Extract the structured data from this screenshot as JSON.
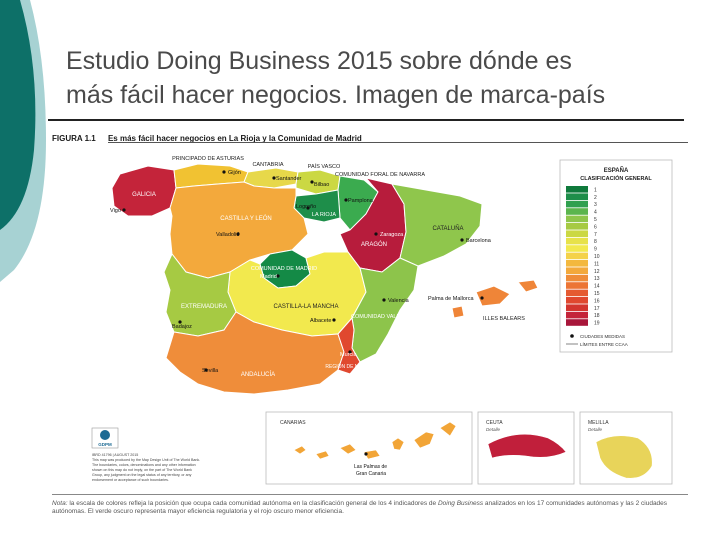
{
  "slide": {
    "title_line1": "Estudio Doing Business 2015 sobre dónde es",
    "title_line2": "más fácil hacer negocios. Imagen de marca-país"
  },
  "figure": {
    "number": "FIGURA 1.1",
    "title": "Es más fácil hacer negocios en La Rioja y la Comunidad de Madrid"
  },
  "regions": [
    {
      "name": "GALICIA",
      "color": "#c4243a"
    },
    {
      "name": "PRINCIPADO DE ASTURIAS",
      "color": "#f1c232"
    },
    {
      "name": "CANTABRIA",
      "color": "#e7d84a"
    },
    {
      "name": "PAÍS VASCO",
      "color": "#cbd843"
    },
    {
      "name": "COMUNIDAD FORAL DE NAVARRA",
      "color": "#3bab4f"
    },
    {
      "name": "LA RIOJA",
      "color": "#1e8e4a"
    },
    {
      "name": "CASTILLA Y LEÓN",
      "color": "#f3a93c"
    },
    {
      "name": "ARAGÓN",
      "color": "#b71c3c"
    },
    {
      "name": "CATALUÑA",
      "color": "#8fc64c"
    },
    {
      "name": "COMUNIDAD DE MADRID",
      "color": "#148a46"
    },
    {
      "name": "CASTILLA-LA MANCHA",
      "color": "#f2e94e"
    },
    {
      "name": "EXTREMADURA",
      "color": "#a6ca43"
    },
    {
      "name": "COMUNIDAD VALENCIANA",
      "color": "#8dc44b"
    },
    {
      "name": "ANDALUCÍA",
      "color": "#ef8d3a"
    },
    {
      "name": "REGIÓN DE MURCIA",
      "color": "#e0482f"
    },
    {
      "name": "ILLES BALEARS",
      "color": "#ef8538"
    },
    {
      "name": "CANARIAS",
      "color": "#f2a537"
    },
    {
      "name": "CEUTA",
      "color": "#c11f3b"
    },
    {
      "name": "MELILLA",
      "color": "#e8d45a"
    }
  ],
  "cities": {
    "gijon": "Gijón",
    "santander": "Santander",
    "bilbao": "Bilbao",
    "pamplona": "Pamplona",
    "logrono": "Logroño",
    "vigo": "Vigo",
    "valladolid": "Valladolid",
    "zaragoza": "Zaragoza",
    "barcelona": "Barcelona",
    "madrid": "Madrid",
    "valencia": "Valencia",
    "palma": "Palma de Mallorca",
    "badajoz": "Badajoz",
    "albacete": "Albacete",
    "murcia": "Murcia",
    "sevilla": "Sevilla",
    "laspalmas_1": "Las Palmas de",
    "laspalmas_2": "Gran Canaria"
  },
  "insets": {
    "canarias": "CANARIAS",
    "ceuta": "CEUTA",
    "ceuta_detail": "Detalle",
    "melilla": "MELILLA",
    "melilla_detail": "Detalle"
  },
  "legend": {
    "title_1": "ESPAÑA",
    "title_2": "CLASIFICACIÓN GENERAL",
    "ranks": [
      {
        "label": "1",
        "color": "#0f7a3c"
      },
      {
        "label": "2",
        "color": "#1e8e4a"
      },
      {
        "label": "3",
        "color": "#2fa04f"
      },
      {
        "label": "4",
        "color": "#5bb54e"
      },
      {
        "label": "5",
        "color": "#8fc64c"
      },
      {
        "label": "6",
        "color": "#a6ca43"
      },
      {
        "label": "7",
        "color": "#cbd843"
      },
      {
        "label": "8",
        "color": "#e7e24a"
      },
      {
        "label": "9",
        "color": "#f2e94e"
      },
      {
        "label": "10",
        "color": "#f4d24a"
      },
      {
        "label": "11",
        "color": "#f3b83e"
      },
      {
        "label": "12",
        "color": "#f3a93c"
      },
      {
        "label": "13",
        "color": "#ef8d3a"
      },
      {
        "label": "14",
        "color": "#ec7535"
      },
      {
        "label": "15",
        "color": "#e55a31"
      },
      {
        "label": "16",
        "color": "#e0482f"
      },
      {
        "label": "17",
        "color": "#d3352f"
      },
      {
        "label": "18",
        "color": "#c4243a"
      },
      {
        "label": "19",
        "color": "#a8163a"
      }
    ],
    "cities_label": "CIUDADES MEDIDAS",
    "border_label": "LÍMITES ENTRE CCAA"
  },
  "publisher": {
    "logo_text": "GDPM",
    "line1": "IBRD 41796 | AUGUST 2015",
    "line2": "This map was produced by the Map Design Unit of The World Bank.",
    "line3": "The boundaries, colors, denominations and any other information",
    "line4": "shown on this map do not imply, on the part of The World Bank",
    "line5": "Group, any judgment on the legal status of any territory, or any",
    "line6": "endorsement or acceptance of such boundaries."
  },
  "note": {
    "prefix": "Nota:",
    "text": "la escala de colores refleja la posición que ocupa cada comunidad autónoma en la clasificación general de los 4 indicadores de",
    "italic": "Doing Business",
    "text2": "analizados en los 17 comunidades autónomas y las 2 ciudades autónomas. El verde oscuro representa mayor eficiencia regulatoria y el rojo oscuro menor eficiencia."
  }
}
